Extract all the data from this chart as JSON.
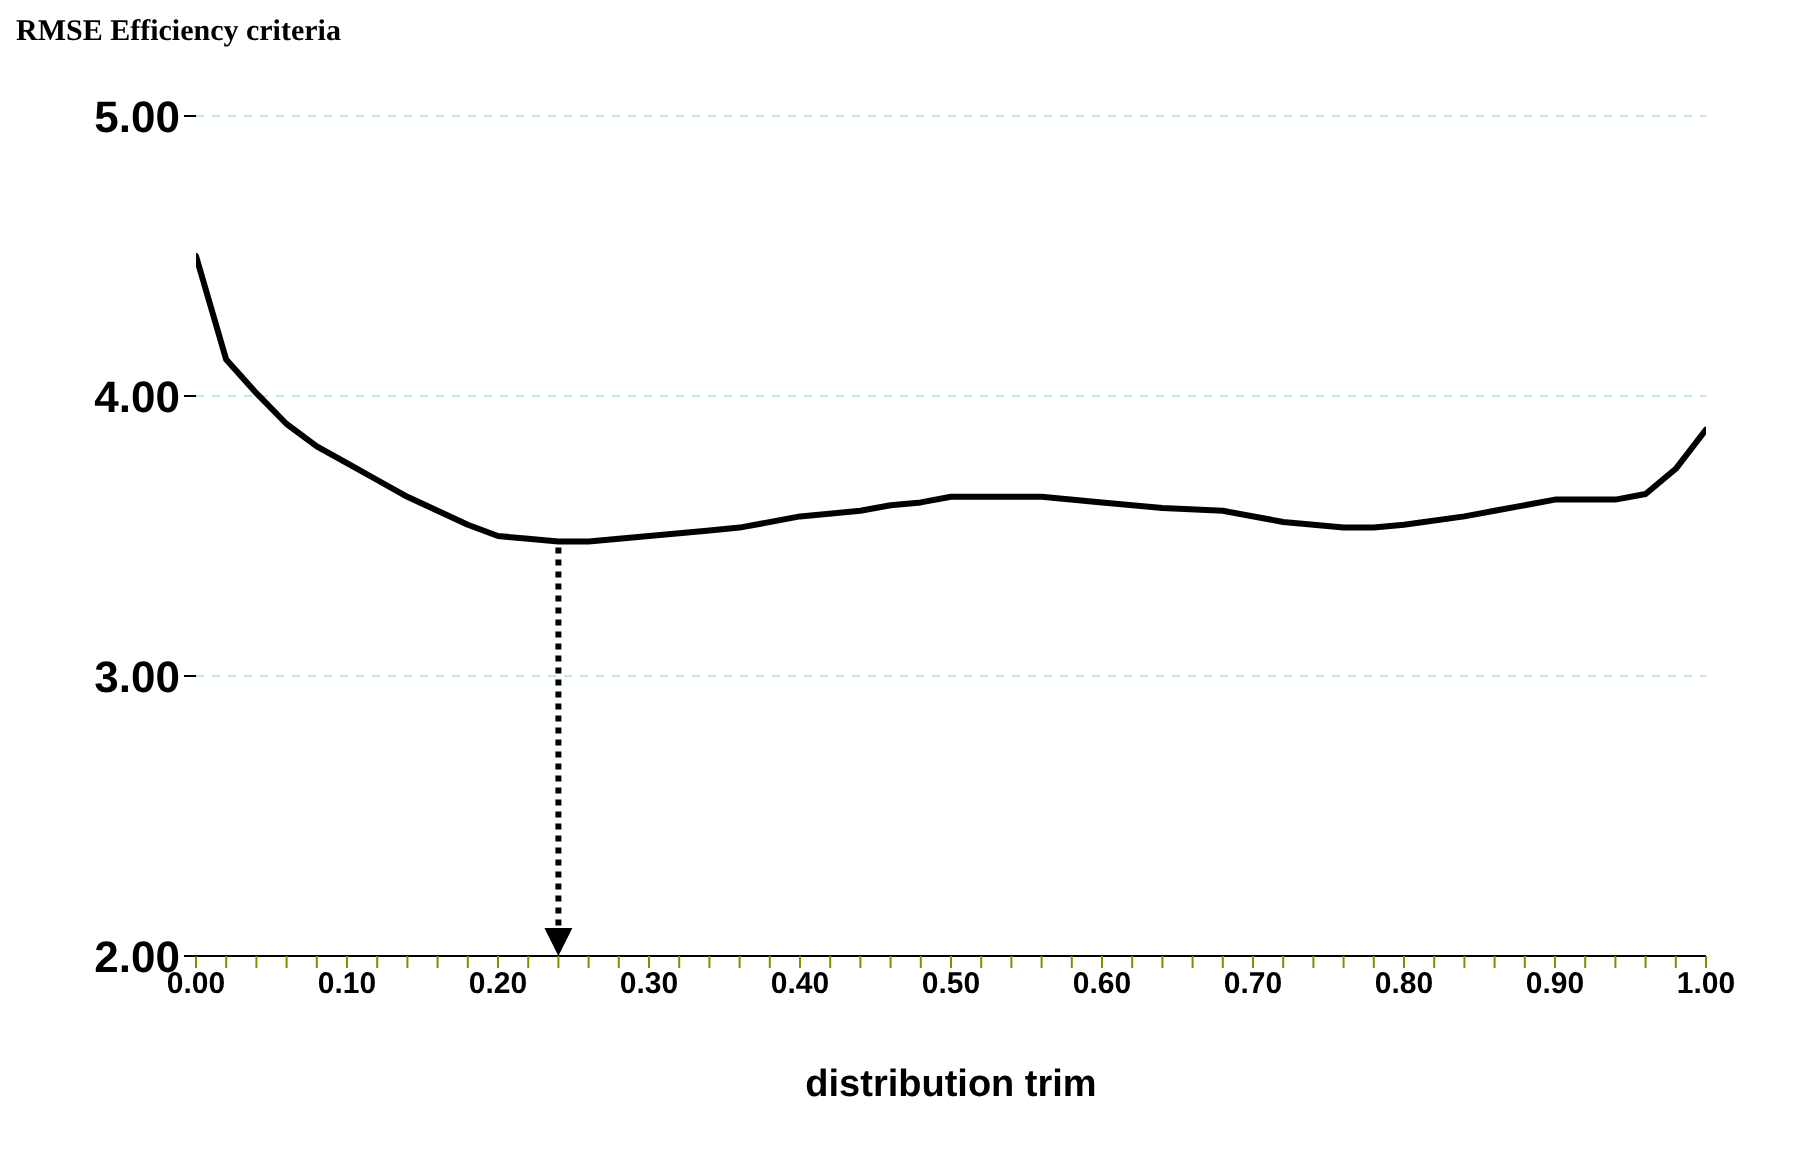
{
  "chart_data": {
    "type": "line",
    "ylabel": "RMSE Efficiency criteria",
    "xlabel": "distribution trim",
    "x": [
      0,
      0.02,
      0.04,
      0.06,
      0.08,
      0.1,
      0.12,
      0.14,
      0.16,
      0.18,
      0.2,
      0.22,
      0.24,
      0.26,
      0.28,
      0.3,
      0.34,
      0.36,
      0.4,
      0.44,
      0.46,
      0.48,
      0.5,
      0.56,
      0.6,
      0.64,
      0.68,
      0.72,
      0.76,
      0.78,
      0.8,
      0.84,
      0.86,
      0.9,
      0.94,
      0.96,
      0.98,
      1
    ],
    "series": [
      {
        "color": "#000000",
        "values": [
          4.5,
          4.13,
          4.01,
          3.9,
          3.82,
          3.76,
          3.7,
          3.64,
          3.59,
          3.54,
          3.5,
          3.49,
          3.48,
          3.48,
          3.49,
          3.5,
          3.52,
          3.53,
          3.57,
          3.59,
          3.61,
          3.62,
          3.64,
          3.64,
          3.62,
          3.6,
          3.59,
          3.55,
          3.53,
          3.53,
          3.54,
          3.57,
          3.59,
          3.63,
          3.63,
          3.65,
          3.74,
          3.88
        ]
      }
    ],
    "xlim": [
      0,
      1
    ],
    "ylim": [
      2,
      5
    ],
    "xticks": [
      {
        "value": 0,
        "label": "0.00"
      },
      {
        "value": 0.02,
        "label": null
      },
      {
        "value": 0.04,
        "label": null
      },
      {
        "value": 0.06,
        "label": null
      },
      {
        "value": 0.08,
        "label": null
      },
      {
        "value": 0.1,
        "label": "0.10"
      },
      {
        "value": 0.12,
        "label": null
      },
      {
        "value": 0.14,
        "label": null
      },
      {
        "value": 0.16,
        "label": null
      },
      {
        "value": 0.18,
        "label": null
      },
      {
        "value": 0.2,
        "label": "0.20"
      },
      {
        "value": 0.22,
        "label": null
      },
      {
        "value": 0.24,
        "label": null
      },
      {
        "value": 0.26,
        "label": null
      },
      {
        "value": 0.28,
        "label": null
      },
      {
        "value": 0.3,
        "label": "0.30"
      },
      {
        "value": 0.32,
        "label": null
      },
      {
        "value": 0.34,
        "label": null
      },
      {
        "value": 0.36,
        "label": null
      },
      {
        "value": 0.38,
        "label": null
      },
      {
        "value": 0.4,
        "label": "0.40"
      },
      {
        "value": 0.42,
        "label": null
      },
      {
        "value": 0.44,
        "label": null
      },
      {
        "value": 0.46,
        "label": null
      },
      {
        "value": 0.48,
        "label": null
      },
      {
        "value": 0.5,
        "label": "0.50"
      },
      {
        "value": 0.52,
        "label": null
      },
      {
        "value": 0.54,
        "label": null
      },
      {
        "value": 0.56,
        "label": null
      },
      {
        "value": 0.58,
        "label": null
      },
      {
        "value": 0.6,
        "label": "0.60"
      },
      {
        "value": 0.62,
        "label": null
      },
      {
        "value": 0.64,
        "label": null
      },
      {
        "value": 0.66,
        "label": null
      },
      {
        "value": 0.68,
        "label": null
      },
      {
        "value": 0.7,
        "label": "0.70"
      },
      {
        "value": 0.72,
        "label": null
      },
      {
        "value": 0.74,
        "label": null
      },
      {
        "value": 0.76,
        "label": null
      },
      {
        "value": 0.78,
        "label": null
      },
      {
        "value": 0.8,
        "label": "0.80"
      },
      {
        "value": 0.82,
        "label": null
      },
      {
        "value": 0.84,
        "label": null
      },
      {
        "value": 0.86,
        "label": null
      },
      {
        "value": 0.88,
        "label": null
      },
      {
        "value": 0.9,
        "label": "0.90"
      },
      {
        "value": 0.92,
        "label": null
      },
      {
        "value": 0.94,
        "label": null
      },
      {
        "value": 0.96,
        "label": null
      },
      {
        "value": 0.98,
        "label": null
      },
      {
        "value": 1,
        "label": "1.00"
      }
    ],
    "yticks": [
      {
        "value": 2,
        "label": "2.00"
      },
      {
        "value": 3,
        "label": "3.00"
      },
      {
        "value": 4,
        "label": "4.00"
      },
      {
        "value": 5,
        "label": "5.00"
      }
    ],
    "grid": "y",
    "legend": false,
    "marker": "none",
    "line_style": "solid"
  }
}
